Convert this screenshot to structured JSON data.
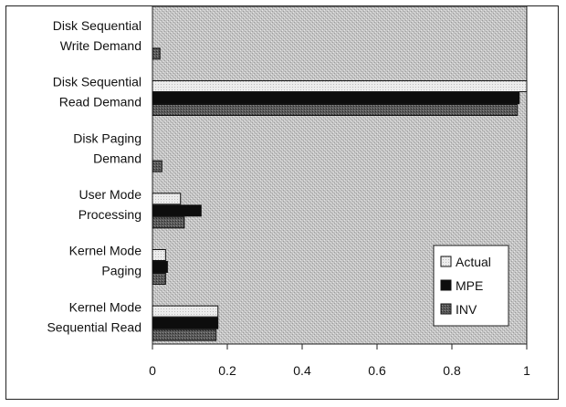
{
  "chart_data": {
    "type": "bar",
    "orientation": "horizontal",
    "categories": [
      [
        "Disk Sequential",
        "Write Demand"
      ],
      [
        "Disk Sequential",
        "Read Demand"
      ],
      [
        "Disk Paging",
        "Demand"
      ],
      [
        "User Mode",
        "Processing"
      ],
      [
        "Kernel Mode",
        "Paging"
      ],
      [
        "Kernel Mode",
        "Sequential Read"
      ]
    ],
    "series": [
      {
        "name": "Actual",
        "color": "#e6e6e6",
        "values": [
          0.0,
          1.0,
          0.0,
          0.075,
          0.035,
          0.175
        ]
      },
      {
        "name": "MPE",
        "color": "#0d0d0d",
        "values": [
          0.0,
          0.98,
          0.0,
          0.13,
          0.04,
          0.175
        ]
      },
      {
        "name": "INV",
        "color": "#555555",
        "values": [
          0.02,
          0.975,
          0.025,
          0.085,
          0.035,
          0.17
        ]
      }
    ],
    "xlim": [
      0,
      1
    ],
    "xticks": [
      "0",
      "0.2",
      "0.4",
      "0.6",
      "0.8",
      "1"
    ],
    "xtick_values": [
      0,
      0.2,
      0.4,
      0.6,
      0.8,
      1
    ],
    "title": "",
    "xlabel": "",
    "ylabel": "",
    "legend_position": "bottom-right",
    "grid": false,
    "plot_background": "#c4c4c4"
  }
}
